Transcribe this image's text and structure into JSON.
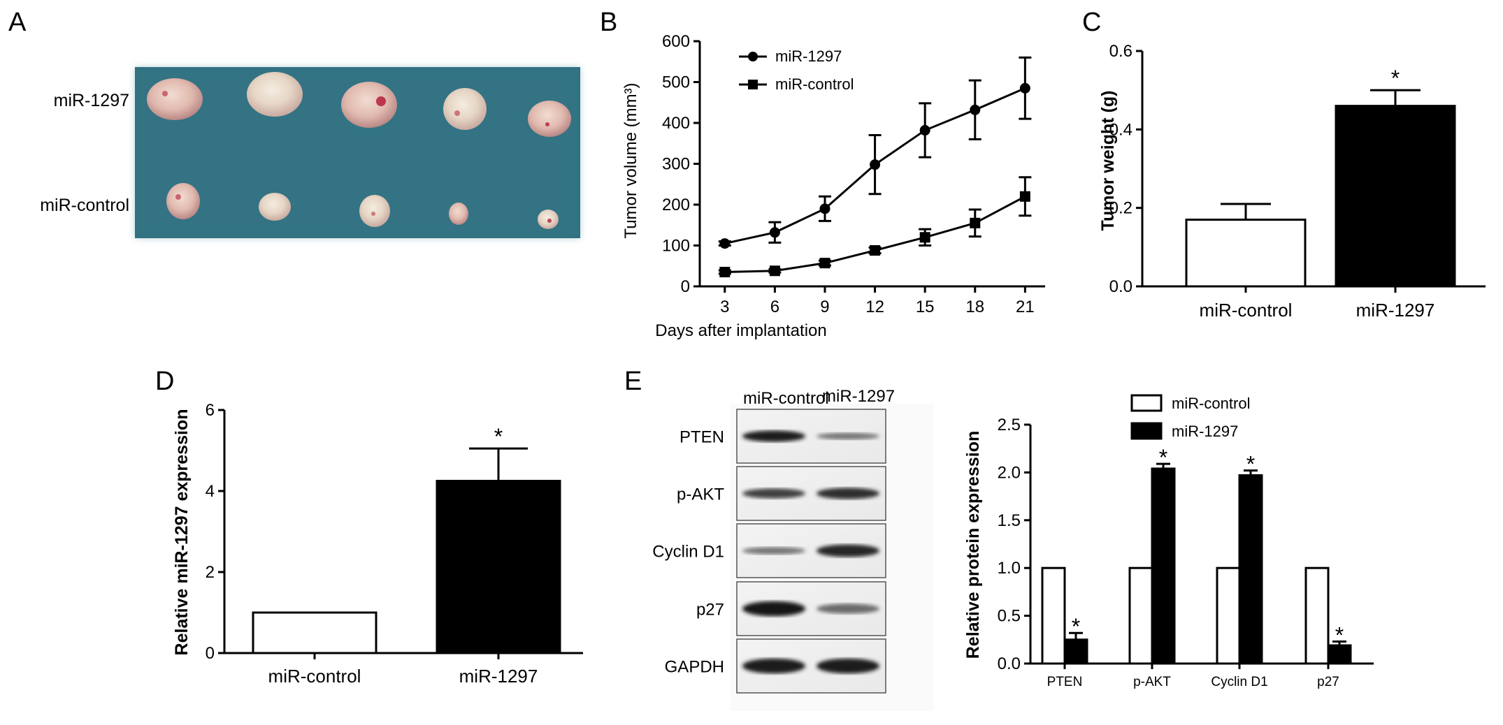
{
  "panels": {
    "A": {
      "label": "A",
      "rows": [
        "miR-1297",
        "miR-control"
      ]
    },
    "B": {
      "label": "B"
    },
    "C": {
      "label": "C"
    },
    "D": {
      "label": "D"
    },
    "E": {
      "label": "E",
      "blot_columns": [
        "miR-control",
        "miR-1297"
      ],
      "blot_rows": [
        "PTEN",
        "p-AKT",
        "Cyclin D1",
        "p27",
        "GAPDH"
      ]
    }
  },
  "chart_data": [
    {
      "id": "B",
      "type": "line",
      "xlabel": "Days after implantation",
      "ylabel": "Tumor volume (mm³)",
      "x": [
        3,
        6,
        9,
        12,
        15,
        18,
        21
      ],
      "xticks": [
        "3",
        "6",
        "9",
        "12",
        "15",
        "18",
        "21"
      ],
      "ylim": [
        0,
        600
      ],
      "yticks": [
        "0",
        "100",
        "200",
        "300",
        "400",
        "500",
        "600"
      ],
      "legend_position": "top-left",
      "series": [
        {
          "name": "miR-1297",
          "marker": "circle",
          "values": [
            105,
            132,
            190,
            298,
            382,
            432,
            485
          ],
          "errors": [
            5,
            25,
            30,
            72,
            66,
            72,
            75
          ]
        },
        {
          "name": "miR-control",
          "marker": "square",
          "values": [
            35,
            38,
            57,
            88,
            120,
            155,
            220
          ],
          "errors": [
            4,
            4,
            6,
            7,
            20,
            33,
            47
          ]
        }
      ]
    },
    {
      "id": "C",
      "type": "bar",
      "ylabel": "Tumor weight (g)",
      "categories": [
        "miR-control",
        "miR-1297"
      ],
      "values": [
        0.17,
        0.46
      ],
      "errors": [
        0.04,
        0.04
      ],
      "fills": [
        "#ffffff",
        "#000000"
      ],
      "significance": [
        "",
        "*"
      ],
      "ylim": [
        0,
        0.6
      ],
      "yticks": [
        "0.0",
        "0.2",
        "0.4",
        "0.6"
      ]
    },
    {
      "id": "D",
      "type": "bar",
      "ylabel": "Relative miR-1297 expression",
      "categories": [
        "miR-control",
        "miR-1297"
      ],
      "values": [
        1.0,
        4.25
      ],
      "errors": [
        0,
        0.8
      ],
      "fills": [
        "#ffffff",
        "#000000"
      ],
      "significance": [
        "",
        "*"
      ],
      "ylim": [
        0,
        6
      ],
      "yticks": [
        "0",
        "2",
        "4",
        "6"
      ]
    },
    {
      "id": "E",
      "type": "bar",
      "ylabel": "Relative protein expression",
      "categories": [
        "PTEN",
        "p-AKT",
        "Cyclin D1",
        "p27"
      ],
      "ylim": [
        0,
        2.5
      ],
      "yticks": [
        "0.0",
        "0.5",
        "1.0",
        "1.5",
        "2.0",
        "2.5"
      ],
      "legend_position": "top",
      "series": [
        {
          "name": "miR-control",
          "fill": "#ffffff",
          "values": [
            1.0,
            1.0,
            1.0,
            1.0
          ],
          "errors": [
            0,
            0,
            0,
            0
          ],
          "significance": [
            "",
            "",
            "",
            ""
          ]
        },
        {
          "name": "miR-1297",
          "fill": "#000000",
          "values": [
            0.25,
            2.04,
            1.97,
            0.19
          ],
          "errors": [
            0.07,
            0.05,
            0.05,
            0.04
          ],
          "significance": [
            "*",
            "*",
            "*",
            "*"
          ]
        }
      ]
    }
  ]
}
